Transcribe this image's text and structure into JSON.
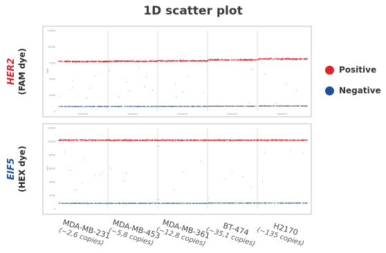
{
  "chart_data": {
    "type": "scatter",
    "title": "1D scatter plot",
    "legend": {
      "position": "right",
      "entries": [
        "Positive",
        "Negative"
      ]
    },
    "colors": {
      "Positive": "#e0232a",
      "Negative": "#1f4e9a",
      "HER2": "#d8232a",
      "EIF5": "#1f4e9a"
    },
    "categories": [
      {
        "name": "MDA-MB-231",
        "copies": "(~2,6 copies)"
      },
      {
        "name": "MDA-MB-453",
        "copies": "(~5,8 copies)"
      },
      {
        "name": "MDA-MB-361",
        "copies": "(~12,8 copies)"
      },
      {
        "name": "BT-474",
        "copies": "(~35,1 copies)"
      },
      {
        "name": "H2170",
        "copies": "(~135 copies)"
      }
    ],
    "panels": [
      {
        "gene": "HER2",
        "dye": "(FAM dye)",
        "ylabel": "FAM",
        "ylim": [
          0,
          12500
        ],
        "yticks": [
          "0",
          "2500",
          "5000",
          "7500",
          "10000",
          "12500"
        ],
        "well_labels": [
          "Sample1",
          "Sample2",
          "Sample3",
          "Sample4",
          "Sample5"
        ],
        "series": [
          {
            "name": "Positive",
            "band_center": [
              7700,
              7750,
              7800,
              7950,
              8100
            ],
            "band_spread": 350
          },
          {
            "name": "Negative",
            "band_center": [
              750,
              760,
              770,
              800,
              830
            ],
            "band_spread": 100
          }
        ]
      },
      {
        "gene": "EIF5",
        "dye": "(HEX dye)",
        "ylabel": "HEX",
        "ylim": [
          0,
          12500
        ],
        "yticks": [
          "0",
          "2000",
          "4000",
          "6000",
          "8000",
          "10000",
          "12000"
        ],
        "well_labels": [],
        "series": [
          {
            "name": "Positive",
            "band_center": [
              10600,
              10600,
              10600,
              10600,
              10600
            ],
            "band_spread": 350
          },
          {
            "name": "Negative",
            "band_center": [
              850,
              850,
              850,
              880,
              880
            ],
            "band_spread": 120
          }
        ]
      }
    ]
  }
}
